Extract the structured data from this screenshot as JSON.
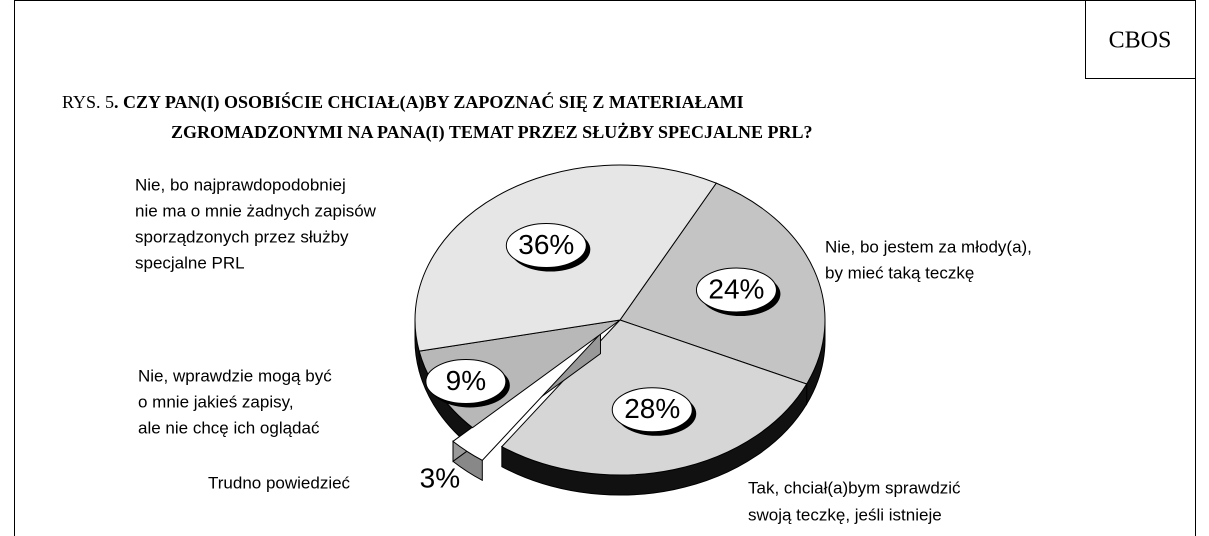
{
  "chart_data": {
    "type": "pie",
    "source": "CBOS",
    "title": [
      "RYS. 5",
      ". CZY PAN(I) OSOBIŚCIE CHCIAŁ(A)BY ZAPOZNAĆ SIĘ Z MATERIAŁAMI",
      "ZGROMADZONYMI NA PANA(I) TEMAT PRZEZ SŁUŻBY SPECJALNE PRL?"
    ],
    "categories": [
      [
        "Nie, bo jestem za młody(a),",
        "by mieć taką teczkę"
      ],
      [
        "Tak, chciał(a)bym sprawdzić",
        "swoją teczkę, jeśli istnieje"
      ],
      [
        "Trudno powiedzieć"
      ],
      [
        "Nie, wprawdzie mogą być",
        "o mnie jakieś zapisy,",
        "ale nie chcę ich oglądać"
      ],
      [
        "Nie, bo najprawdopodobniej",
        "nie ma o mnie żadnych zapisów",
        "sporządzonych przez służby",
        "specjalne PRL"
      ]
    ],
    "values": [
      24,
      28,
      3,
      9,
      36
    ],
    "value_labels": [
      "24%",
      "28%",
      "3%",
      "9%",
      "36%"
    ],
    "colors": [
      "#c4c4c4",
      "#d6d6d6",
      "#ffffff",
      "#b8b8b8",
      "#e6e6e6"
    ],
    "exploded": [
      false,
      false,
      true,
      false,
      false
    ]
  }
}
